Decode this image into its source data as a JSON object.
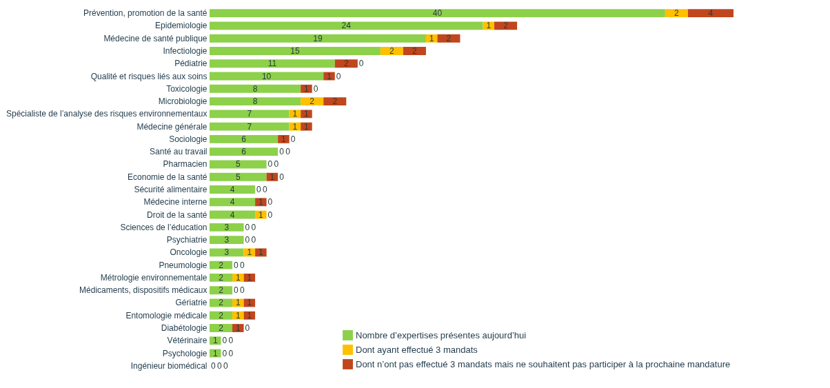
{
  "chart_data": {
    "type": "bar",
    "orientation": "horizontal",
    "stacked": true,
    "data_labels": true,
    "legend": "bottom right",
    "grid": false,
    "categories": [
      "Prévention, promotion de la santé",
      "Epidemiologie",
      "Médecine de santé publique",
      "Infectiologie",
      "Pédiatrie",
      "Qualité et risques liés aux soins",
      "Toxicologie",
      "Microbiologie",
      "Spécialiste de l’analyse des risques environnementaux",
      "Médecine générale",
      "Sociologie",
      "Santé au travail",
      "Pharmacien",
      "Economie de la santé",
      "Sécurité alimentaire",
      "Médecine interne",
      "Droit de la santé",
      "Sciences de l’éducation",
      "Psychiatrie",
      "Oncologie",
      "Pneumologie",
      "Métrologie environnementale",
      "Médicaments, dispositifs médicaux",
      "Gériatrie",
      "Entomologie médicale",
      "Diabétologie",
      "Vétérinaire",
      "Psychologie",
      "Ingénieur biomédical"
    ],
    "series": [
      {
        "name": "Nombre d’expertises présentes aujourd’hui",
        "color": "#8dd04a",
        "values": [
          40,
          24,
          19,
          15,
          11,
          10,
          8,
          8,
          7,
          7,
          6,
          6,
          5,
          5,
          4,
          4,
          4,
          3,
          3,
          3,
          2,
          2,
          2,
          2,
          2,
          2,
          1,
          1,
          0
        ]
      },
      {
        "name": "Dont ayant effectué 3 mandats",
        "color": "#ffc000",
        "values": [
          2,
          1,
          1,
          2,
          0,
          0,
          0,
          2,
          1,
          1,
          0,
          0,
          0,
          0,
          0,
          0,
          1,
          0,
          0,
          1,
          0,
          1,
          0,
          1,
          1,
          0,
          0,
          0,
          0
        ]
      },
      {
        "name": "Dont n’ont pas effectué 3 mandats mais ne souhaitent pas participer à la prochaine mandature",
        "color": "#c0461e",
        "values": [
          4,
          2,
          2,
          2,
          2,
          1,
          1,
          2,
          1,
          1,
          1,
          0,
          0,
          1,
          0,
          1,
          0,
          0,
          0,
          1,
          0,
          1,
          0,
          1,
          1,
          1,
          0,
          0,
          0
        ]
      }
    ]
  }
}
